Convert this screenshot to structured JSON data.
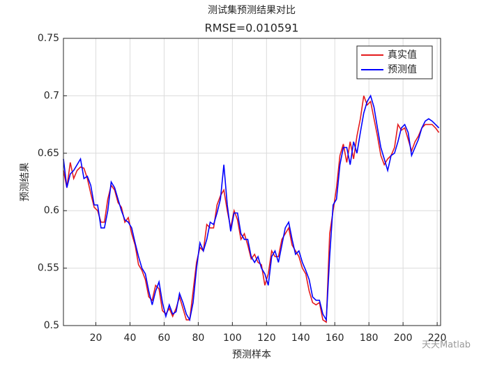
{
  "chart_data": {
    "type": "line",
    "title": "测试集预测结果对比",
    "subtitle": "RMSE=0.010591",
    "xlabel": "预测样本",
    "ylabel": "预测结果",
    "watermark": "天天Matlab",
    "x": [
      1,
      3,
      5,
      7,
      9,
      11,
      13,
      15,
      17,
      19,
      21,
      23,
      25,
      27,
      29,
      31,
      33,
      35,
      37,
      39,
      41,
      43,
      45,
      47,
      49,
      51,
      53,
      55,
      57,
      59,
      61,
      63,
      65,
      67,
      69,
      71,
      73,
      75,
      77,
      79,
      81,
      83,
      85,
      87,
      89,
      91,
      93,
      95,
      97,
      99,
      101,
      103,
      105,
      107,
      109,
      111,
      113,
      115,
      117,
      119,
      121,
      123,
      125,
      127,
      129,
      131,
      133,
      135,
      137,
      139,
      141,
      143,
      145,
      147,
      149,
      151,
      153,
      155,
      157,
      159,
      161,
      163,
      165,
      167,
      169,
      171,
      173,
      175,
      177,
      179,
      181,
      183,
      185,
      187,
      189,
      191,
      193,
      195,
      197,
      199,
      201,
      203,
      205,
      207,
      209,
      211,
      213,
      215,
      217,
      219,
      221
    ],
    "series": [
      {
        "name": "真实值",
        "color": "#e41a1c",
        "values": [
          0.635,
          0.62,
          0.642,
          0.628,
          0.635,
          0.638,
          0.637,
          0.628,
          0.615,
          0.603,
          0.6,
          0.59,
          0.59,
          0.61,
          0.622,
          0.618,
          0.607,
          0.603,
          0.59,
          0.594,
          0.58,
          0.57,
          0.553,
          0.548,
          0.54,
          0.525,
          0.522,
          0.535,
          0.532,
          0.513,
          0.51,
          0.515,
          0.508,
          0.515,
          0.525,
          0.515,
          0.505,
          0.505,
          0.53,
          0.555,
          0.568,
          0.565,
          0.588,
          0.585,
          0.585,
          0.605,
          0.613,
          0.618,
          0.6,
          0.585,
          0.6,
          0.592,
          0.575,
          0.58,
          0.57,
          0.558,
          0.562,
          0.555,
          0.553,
          0.535,
          0.545,
          0.565,
          0.56,
          0.56,
          0.575,
          0.58,
          0.585,
          0.57,
          0.565,
          0.56,
          0.55,
          0.545,
          0.53,
          0.52,
          0.518,
          0.52,
          0.505,
          0.503,
          0.58,
          0.6,
          0.62,
          0.648,
          0.658,
          0.642,
          0.66,
          0.645,
          0.665,
          0.68,
          0.7,
          0.692,
          0.695,
          0.68,
          0.665,
          0.648,
          0.64,
          0.645,
          0.648,
          0.655,
          0.675,
          0.67,
          0.672,
          0.662,
          0.652,
          0.66,
          0.665,
          0.672,
          0.675,
          0.675,
          0.675,
          0.672,
          0.668
        ]
      },
      {
        "name": "预测值",
        "color": "#0000ff",
        "values": [
          0.645,
          0.62,
          0.632,
          0.635,
          0.64,
          0.645,
          0.628,
          0.63,
          0.622,
          0.605,
          0.605,
          0.585,
          0.585,
          0.6,
          0.625,
          0.62,
          0.61,
          0.6,
          0.592,
          0.59,
          0.585,
          0.572,
          0.56,
          0.55,
          0.545,
          0.53,
          0.518,
          0.53,
          0.538,
          0.52,
          0.508,
          0.518,
          0.51,
          0.512,
          0.528,
          0.52,
          0.51,
          0.505,
          0.52,
          0.55,
          0.572,
          0.565,
          0.575,
          0.59,
          0.588,
          0.598,
          0.61,
          0.64,
          0.605,
          0.582,
          0.598,
          0.598,
          0.58,
          0.575,
          0.575,
          0.56,
          0.555,
          0.56,
          0.55,
          0.545,
          0.535,
          0.56,
          0.565,
          0.555,
          0.57,
          0.585,
          0.59,
          0.575,
          0.562,
          0.565,
          0.555,
          0.548,
          0.54,
          0.525,
          0.522,
          0.522,
          0.51,
          0.505,
          0.56,
          0.605,
          0.61,
          0.64,
          0.655,
          0.655,
          0.64,
          0.66,
          0.65,
          0.668,
          0.685,
          0.695,
          0.7,
          0.69,
          0.672,
          0.655,
          0.645,
          0.635,
          0.648,
          0.65,
          0.66,
          0.672,
          0.675,
          0.668,
          0.648,
          0.655,
          0.662,
          0.672,
          0.678,
          0.68,
          0.678,
          0.675,
          0.672
        ]
      }
    ],
    "xlim": [
      1,
      222
    ],
    "xticks": [
      20,
      40,
      60,
      80,
      100,
      120,
      140,
      160,
      180,
      200,
      220
    ],
    "ylim": [
      0.5,
      0.75
    ],
    "yticks": [
      0.5,
      0.55,
      0.6,
      0.65,
      0.7,
      0.75
    ],
    "grid": true,
    "legend": "upper-right"
  }
}
